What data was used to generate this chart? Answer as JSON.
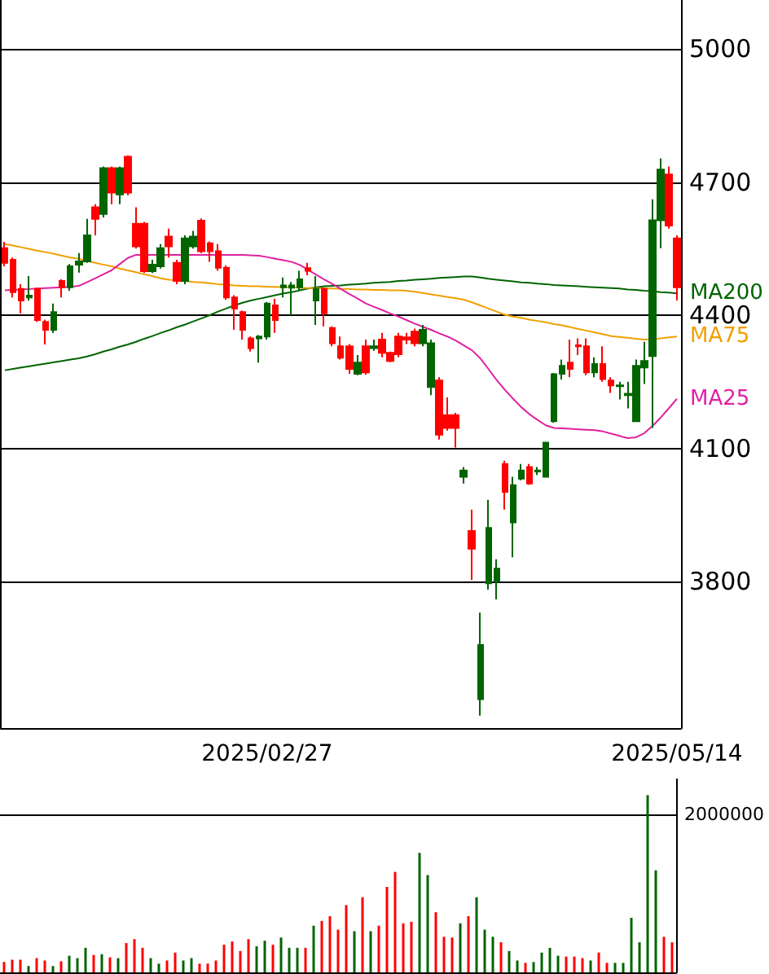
{
  "chart_data": [
    {
      "type": "candlestick",
      "categories": [
        null,
        null,
        null,
        null,
        null,
        null,
        null,
        null,
        null,
        null,
        null,
        null,
        null,
        null,
        null,
        null,
        null,
        null,
        null,
        null,
        null,
        null,
        null,
        null,
        null,
        null,
        null,
        null,
        null,
        null,
        null,
        null,
        "2025/02/27",
        null,
        null,
        null,
        null,
        null,
        null,
        null,
        null,
        null,
        null,
        null,
        null,
        null,
        null,
        null,
        null,
        null,
        null,
        null,
        null,
        null,
        null,
        null,
        null,
        null,
        null,
        null,
        null,
        null,
        null,
        null,
        null,
        null,
        null,
        null,
        null,
        null,
        null,
        null,
        null,
        null,
        null,
        null,
        null,
        null,
        null,
        null,
        null,
        null,
        "2025/05/14"
      ],
      "ohlc": [
        [
          4551,
          4565,
          4510,
          4518
        ],
        [
          4525,
          4530,
          4440,
          4452
        ],
        [
          4459,
          4470,
          4404,
          4433
        ],
        [
          4440,
          4488,
          4433,
          4444
        ],
        [
          4459,
          4462,
          4385,
          4389
        ],
        [
          4385,
          4390,
          4334,
          4367
        ],
        [
          4367,
          4426,
          4360,
          4407
        ],
        [
          4477,
          4481,
          4440,
          4463
        ],
        [
          4463,
          4515,
          4455,
          4510
        ],
        [
          4514,
          4540,
          4496,
          4521
        ],
        [
          4521,
          4617,
          4518,
          4580
        ],
        [
          4643,
          4650,
          4580,
          4617
        ],
        [
          4628,
          4735,
          4620,
          4731
        ],
        [
          4731,
          4735,
          4650,
          4676
        ],
        [
          4672,
          4735,
          4650,
          4731
        ],
        [
          4757,
          4760,
          4670,
          4676
        ],
        [
          4606,
          4643,
          4550,
          4555
        ],
        [
          4606,
          4610,
          4495,
          4499
        ],
        [
          4499,
          4525,
          4495,
          4514
        ],
        [
          4510,
          4560,
          4505,
          4551
        ],
        [
          4577,
          4595,
          4530,
          4555
        ],
        [
          4518,
          4525,
          4470,
          4477
        ],
        [
          4477,
          4580,
          4470,
          4573
        ],
        [
          4555,
          4590,
          4550,
          4577
        ],
        [
          4613,
          4618,
          4540,
          4544
        ],
        [
          4562,
          4566,
          4520,
          4544
        ],
        [
          4544,
          4560,
          4500,
          4507
        ],
        [
          4507,
          4512,
          4435,
          4440
        ],
        [
          4440,
          4445,
          4367,
          4415
        ],
        [
          4407,
          4410,
          4345,
          4367
        ],
        [
          4348,
          4352,
          4318,
          4326
        ],
        [
          4348,
          4355,
          4293,
          4352
        ],
        [
          4352,
          4430,
          4345,
          4426
        ],
        [
          4422,
          4437,
          4360,
          4389
        ],
        [
          4463,
          4485,
          4440,
          4467
        ],
        [
          4462,
          4475,
          4400,
          4467
        ],
        [
          4463,
          4500,
          4455,
          4481
        ],
        [
          4506,
          4518,
          4490,
          4500
        ],
        [
          4433,
          4488,
          4378,
          4459
        ],
        [
          4459,
          4462,
          4375,
          4404
        ],
        [
          4371,
          4375,
          4330,
          4337
        ],
        [
          4330,
          4352,
          4300,
          4304
        ],
        [
          4330,
          4335,
          4268,
          4279
        ],
        [
          4268,
          4310,
          4265,
          4293
        ],
        [
          4330,
          4345,
          4266,
          4271
        ],
        [
          4326,
          4345,
          4320,
          4330
        ],
        [
          4345,
          4360,
          4305,
          4315
        ],
        [
          4315,
          4318,
          4294,
          4297
        ],
        [
          4352,
          4360,
          4305,
          4312
        ],
        [
          4350,
          4360,
          4335,
          4345
        ],
        [
          4363,
          4370,
          4330,
          4337
        ],
        [
          4337,
          4378,
          4330,
          4367
        ],
        [
          4238,
          4345,
          4220,
          4337
        ],
        [
          4253,
          4260,
          4120,
          4131
        ],
        [
          4175,
          4215,
          4140,
          4146
        ],
        [
          4175,
          4180,
          4102,
          4146
        ],
        [
          4036,
          4058,
          4021,
          4050
        ],
        [
          3914,
          3962,
          3804,
          3874
        ],
        [
          3535,
          3730,
          3498,
          3657
        ],
        [
          3796,
          3984,
          3782,
          3921
        ],
        [
          3800,
          3850,
          3760,
          3829
        ],
        [
          4065,
          4072,
          3962,
          4002
        ],
        [
          3933,
          4036,
          3855,
          4017
        ],
        [
          4032,
          4065,
          4028,
          4050
        ],
        [
          4058,
          4065,
          4018,
          4021
        ],
        [
          4048,
          4058,
          4040,
          4050
        ],
        [
          4036,
          4113,
          4036,
          4113
        ],
        [
          4161,
          4270,
          4158,
          4267
        ],
        [
          4268,
          4300,
          4255,
          4286
        ],
        [
          4293,
          4345,
          4260,
          4279
        ],
        [
          4332,
          4348,
          4310,
          4330
        ],
        [
          4330,
          4348,
          4265,
          4271
        ],
        [
          4271,
          4305,
          4260,
          4290
        ],
        [
          4290,
          4330,
          4250,
          4256
        ],
        [
          4253,
          4260,
          4225,
          4242
        ],
        [
          4240,
          4250,
          4210,
          4242
        ],
        [
          4220,
          4250,
          4190,
          4223
        ],
        [
          4161,
          4300,
          4160,
          4286
        ],
        [
          4282,
          4340,
          4245,
          4297
        ],
        [
          4308,
          4661,
          4146,
          4614
        ],
        [
          4614,
          4753,
          4551,
          4728
        ],
        [
          4717,
          4735,
          4595,
          4602
        ],
        [
          4573,
          4580,
          4433,
          4463
        ]
      ],
      "colors": [
        "#ff0000",
        "#ff0000",
        "#ff0000",
        "#006400",
        "#ff0000",
        "#ff0000",
        "#006400",
        "#ff0000",
        "#006400",
        "#006400",
        "#006400",
        "#ff0000",
        "#006400",
        "#ff0000",
        "#006400",
        "#ff0000",
        "#ff0000",
        "#ff0000",
        "#006400",
        "#006400",
        "#ff0000",
        "#ff0000",
        "#006400",
        "#006400",
        "#ff0000",
        "#ff0000",
        "#ff0000",
        "#ff0000",
        "#ff0000",
        "#ff0000",
        "#ff0000",
        "#006400",
        "#006400",
        "#ff0000",
        "#006400",
        "#006400",
        "#006400",
        "#ff0000",
        "#006400",
        "#ff0000",
        "#ff0000",
        "#ff0000",
        "#ff0000",
        "#006400",
        "#ff0000",
        "#006400",
        "#ff0000",
        "#ff0000",
        "#ff0000",
        "#ff0000",
        "#ff0000",
        "#006400",
        "#006400",
        "#ff0000",
        "#ff0000",
        "#ff0000",
        "#006400",
        "#ff0000",
        "#006400",
        "#006400",
        "#006400",
        "#ff0000",
        "#006400",
        "#006400",
        "#ff0000",
        "#006400",
        "#006400",
        "#006400",
        "#006400",
        "#ff0000",
        "#ff0000",
        "#ff0000",
        "#006400",
        "#ff0000",
        "#ff0000",
        "#006400",
        "#006400",
        "#006400",
        "#006400",
        "#006400",
        "#006400",
        "#ff0000",
        "#ff0000"
      ],
      "series": [
        {
          "type": "line",
          "name": "MA200",
          "color": "#006400",
          "values": [
            4276,
            4279,
            4282,
            4285,
            4288,
            4291,
            4294,
            4297,
            4300,
            4303,
            4307,
            4312,
            4318,
            4323,
            4329,
            4334,
            4340,
            4347,
            4353,
            4360,
            4366,
            4373,
            4379,
            4386,
            4393,
            4400,
            4408,
            4415,
            4422,
            4428,
            4433,
            4437,
            4441,
            4445,
            4449,
            4452,
            4456,
            4460,
            4463,
            4465,
            4466,
            4467,
            4469,
            4470,
            4471,
            4473,
            4474,
            4475,
            4477,
            4478,
            4480,
            4481,
            4482,
            4484,
            4485,
            4486,
            4487,
            4487,
            4485,
            4482,
            4480,
            4478,
            4476,
            4474,
            4473,
            4471,
            4470,
            4468,
            4467,
            4466,
            4465,
            4464,
            4463,
            4462,
            4461,
            4460,
            4458,
            4457,
            4455,
            4454,
            4452,
            4451,
            4449
          ]
        },
        {
          "type": "line",
          "name": "MA75",
          "color": "#f0a000",
          "values": [
            4560,
            4557,
            4553,
            4549,
            4545,
            4542,
            4538,
            4534,
            4530,
            4527,
            4523,
            4518,
            4514,
            4510,
            4505,
            4501,
            4497,
            4492,
            4488,
            4483,
            4480,
            4479,
            4477,
            4475,
            4474,
            4472,
            4470,
            4469,
            4467,
            4466,
            4465,
            4465,
            4464,
            4464,
            4463,
            4463,
            4462,
            4461,
            4461,
            4460,
            4460,
            4459,
            4459,
            4458,
            4458,
            4457,
            4457,
            4456,
            4456,
            4455,
            4453,
            4450,
            4447,
            4444,
            4441,
            4438,
            4435,
            4429,
            4422,
            4415,
            4408,
            4401,
            4397,
            4394,
            4390,
            4387,
            4384,
            4380,
            4377,
            4373,
            4369,
            4365,
            4361,
            4357,
            4353,
            4351,
            4349,
            4347,
            4345,
            4346,
            4348,
            4350,
            4352
          ]
        },
        {
          "type": "line",
          "name": "MA25",
          "color": "#e020a0",
          "values": [
            4456,
            4457,
            4458,
            4459,
            4460,
            4461,
            4462,
            4463,
            4464,
            4466,
            4474,
            4483,
            4492,
            4501,
            4515,
            4529,
            4536,
            4536,
            4536,
            4536,
            4536,
            4536,
            4536,
            4536,
            4536,
            4536,
            4536,
            4536,
            4536,
            4536,
            4535,
            4534,
            4531,
            4527,
            4524,
            4520,
            4513,
            4502,
            4491,
            4480,
            4470,
            4459,
            4448,
            4438,
            4427,
            4419,
            4412,
            4404,
            4397,
            4389,
            4381,
            4374,
            4367,
            4359,
            4352,
            4343,
            4332,
            4321,
            4303,
            4279,
            4254,
            4232,
            4212,
            4193,
            4177,
            4164,
            4152,
            4146,
            4145,
            4144,
            4143,
            4142,
            4141,
            4138,
            4133,
            4128,
            4123,
            4125,
            4134,
            4150,
            4169,
            4190,
            4212
          ]
        }
      ],
      "ylim": [
        3470,
        5110
      ],
      "yticks": [
        3800,
        4100,
        4400,
        4700,
        5000
      ],
      "grid": true,
      "marker": "none"
    },
    {
      "type": "bar",
      "categories": [
        null,
        null,
        null,
        null,
        null,
        null,
        null,
        null,
        null,
        null,
        null,
        null,
        null,
        null,
        null,
        null,
        null,
        null,
        null,
        null,
        null,
        null,
        null,
        null,
        null,
        null,
        null,
        null,
        null,
        null,
        null,
        null,
        "2025/02/27",
        null,
        null,
        null,
        null,
        null,
        null,
        null,
        null,
        null,
        null,
        null,
        null,
        null,
        null,
        null,
        null,
        null,
        null,
        null,
        null,
        null,
        null,
        null,
        null,
        null,
        null,
        null,
        null,
        null,
        null,
        null,
        null,
        null,
        null,
        null,
        null,
        null,
        null,
        null,
        null,
        null,
        null,
        null,
        null,
        null,
        null,
        null,
        null,
        null,
        "2025/05/14"
      ],
      "values": [
        130000,
        160000,
        160000,
        80000,
        180000,
        150000,
        80000,
        140000,
        210000,
        180000,
        310000,
        220000,
        230000,
        190000,
        180000,
        370000,
        420000,
        310000,
        180000,
        110000,
        150000,
        250000,
        150000,
        180000,
        110000,
        110000,
        150000,
        350000,
        390000,
        270000,
        420000,
        330000,
        400000,
        350000,
        440000,
        310000,
        310000,
        310000,
        590000,
        650000,
        710000,
        540000,
        850000,
        520000,
        950000,
        520000,
        590000,
        1080000,
        1270000,
        620000,
        640000,
        1510000,
        1230000,
        760000,
        450000,
        440000,
        620000,
        710000,
        950000,
        540000,
        450000,
        380000,
        270000,
        150000,
        120000,
        130000,
        250000,
        310000,
        210000,
        200000,
        200000,
        180000,
        150000,
        250000,
        120000,
        120000,
        120000,
        690000,
        380000,
        2240000,
        1290000,
        450000,
        380000
      ],
      "colors": [
        "#ff0000",
        "#ff0000",
        "#ff0000",
        "#006400",
        "#ff0000",
        "#ff0000",
        "#006400",
        "#ff0000",
        "#006400",
        "#006400",
        "#006400",
        "#ff0000",
        "#006400",
        "#ff0000",
        "#006400",
        "#ff0000",
        "#ff0000",
        "#ff0000",
        "#006400",
        "#006400",
        "#ff0000",
        "#ff0000",
        "#006400",
        "#006400",
        "#ff0000",
        "#ff0000",
        "#ff0000",
        "#ff0000",
        "#ff0000",
        "#ff0000",
        "#ff0000",
        "#006400",
        "#006400",
        "#ff0000",
        "#006400",
        "#006400",
        "#006400",
        "#ff0000",
        "#006400",
        "#ff0000",
        "#ff0000",
        "#ff0000",
        "#ff0000",
        "#006400",
        "#ff0000",
        "#006400",
        "#ff0000",
        "#ff0000",
        "#ff0000",
        "#ff0000",
        "#ff0000",
        "#006400",
        "#006400",
        "#ff0000",
        "#ff0000",
        "#ff0000",
        "#006400",
        "#ff0000",
        "#006400",
        "#006400",
        "#006400",
        "#ff0000",
        "#006400",
        "#006400",
        "#ff0000",
        "#006400",
        "#006400",
        "#006400",
        "#006400",
        "#ff0000",
        "#ff0000",
        "#ff0000",
        "#006400",
        "#ff0000",
        "#ff0000",
        "#006400",
        "#006400",
        "#006400",
        "#006400",
        "#006400",
        "#006400",
        "#ff0000",
        "#ff0000"
      ],
      "ylim": [
        0,
        2450000
      ],
      "yticks": [
        2000000
      ],
      "grid": "y",
      "tick_labels": "y"
    }
  ]
}
